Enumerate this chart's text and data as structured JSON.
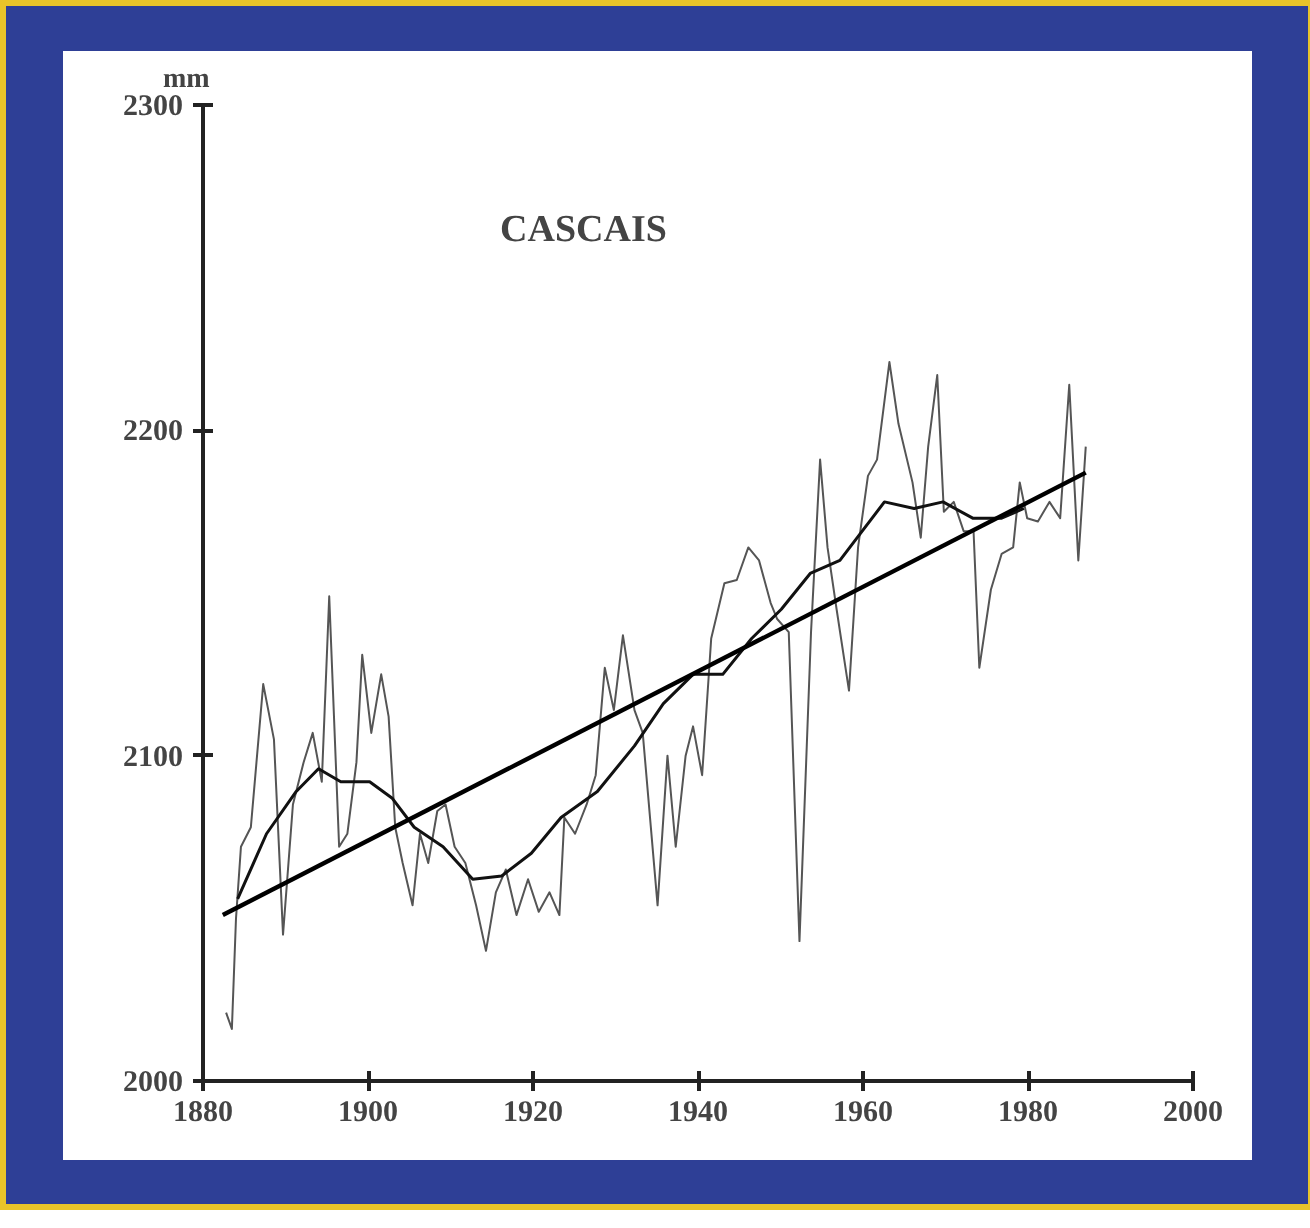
{
  "chart_data": {
    "type": "line",
    "title": "CASCAIS",
    "ylabel": "mm",
    "xlim": [
      1880,
      2000
    ],
    "xticks": [
      1880,
      1900,
      1920,
      1940,
      1960,
      1980,
      2000
    ],
    "ylim": [
      2000,
      2300
    ],
    "yticks": [
      2000,
      2100,
      2200,
      2300
    ],
    "grid": false,
    "marker": "none",
    "line_style": "solid",
    "series": [
      {
        "color": "#555555",
        "x": [
          1882.8,
          1883.5,
          1884,
          1884.6,
          1885.8,
          1887.3,
          1888.6,
          1889.7,
          1890.9,
          1892.2,
          1893.3,
          1894.4,
          1895.3,
          1896.5,
          1897.5,
          1898.6,
          1899.3,
          1900.4,
          1901.6,
          1902.5,
          1903.3,
          1904.2,
          1905.4,
          1906.3,
          1907.3,
          1908.4,
          1909.4,
          1910.5,
          1911.8,
          1913.1,
          1914.3,
          1915.5,
          1916.7,
          1918,
          1919.4,
          1920.7,
          1922,
          1923.2,
          1923.8,
          1925.1,
          1926.5,
          1927.6,
          1928.7,
          1929.8,
          1930.9,
          1932.3,
          1933.3,
          1935.1,
          1936.3,
          1937.3,
          1938.5,
          1939.4,
          1940.5,
          1941.6,
          1943.2,
          1944.7,
          1946.1,
          1947.4,
          1948.8,
          1949.6,
          1951,
          1952.3,
          1953.7,
          1954.8,
          1955.7,
          1956.8,
          1958.3,
          1959.4,
          1960.6,
          1961.7,
          1963.2,
          1964.3,
          1966,
          1967,
          1967.9,
          1969,
          1969.8,
          1971,
          1972.2,
          1973.4,
          1974.1,
          1975.5,
          1976.8,
          1978.2,
          1979,
          1979.9,
          1981.2,
          1982.6,
          1983.9,
          1985,
          1986.1,
          1987
        ],
        "values": [
          2021,
          2016,
          2050,
          2072,
          2078,
          2122,
          2105,
          2045,
          2085,
          2098,
          2107,
          2092,
          2149,
          2072,
          2076,
          2098,
          2131,
          2107,
          2125,
          2112,
          2078,
          2067,
          2054,
          2076,
          2067,
          2083,
          2085,
          2072,
          2067,
          2054,
          2040,
          2058,
          2065,
          2051,
          2062,
          2052,
          2058,
          2051,
          2081,
          2076,
          2085,
          2094,
          2127,
          2114,
          2137,
          2114,
          2107,
          2054,
          2100,
          2072,
          2100,
          2109,
          2094,
          2136,
          2153,
          2154,
          2164,
          2160,
          2147,
          2142,
          2138,
          2043,
          2138,
          2191,
          2164,
          2145,
          2120,
          2164,
          2186,
          2191,
          2221,
          2202,
          2184,
          2167,
          2195,
          2217,
          2175,
          2178,
          2169,
          2169,
          2127,
          2151,
          2162,
          2164,
          2184,
          2173,
          2172,
          2178,
          2173,
          2214,
          2160,
          2195
        ]
      },
      {
        "color": "#111111",
        "x": [
          1884.2,
          1887.7,
          1891.3,
          1894,
          1896.7,
          1900.2,
          1902.9,
          1905.6,
          1909.1,
          1912.7,
          1916.2,
          1919.8,
          1923.4,
          1927.8,
          1932.3,
          1935.8,
          1939.4,
          1943,
          1946.5,
          1950.1,
          1953.6,
          1957.2,
          1959.9,
          1962.6,
          1966.2,
          1969.7,
          1973.3,
          1976.8,
          1979.5
        ],
        "values": [
          2056,
          2076,
          2089,
          2096,
          2092,
          2092,
          2087,
          2078,
          2072,
          2062,
          2063,
          2070,
          2081,
          2089,
          2103,
          2116,
          2125,
          2125,
          2136,
          2145,
          2156,
          2160,
          2169,
          2178,
          2176,
          2178,
          2173,
          2173,
          2176
        ]
      },
      {
        "type": "line",
        "color": "#000000",
        "x": [
          1882.4,
          1987
        ],
        "values": [
          2051,
          2187
        ]
      }
    ]
  }
}
